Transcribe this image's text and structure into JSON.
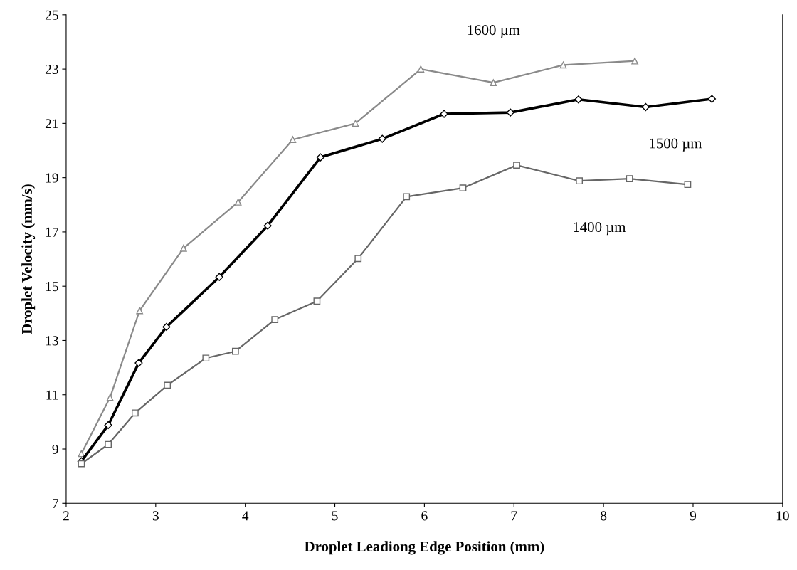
{
  "chart_data": {
    "type": "line",
    "xlabel": "Droplet Leadiong Edge Position (mm)",
    "ylabel": "Droplet Velocity (mm/s)",
    "xlim": [
      2,
      10
    ],
    "xticks": [
      2,
      3,
      4,
      5,
      6,
      7,
      8,
      9,
      10
    ],
    "ylim": [
      7,
      25
    ],
    "yticks": [
      7,
      9,
      11,
      13,
      15,
      17,
      19,
      21,
      23,
      25
    ],
    "grid": false,
    "legend": false,
    "series": [
      {
        "name": "1600 µm",
        "color": "#8a8a8a",
        "marker": "triangle",
        "x": [
          2.17,
          2.49,
          2.82,
          3.31,
          3.92,
          4.53,
          5.23,
          5.96,
          6.77,
          7.55,
          8.35
        ],
        "values": [
          8.83,
          10.9,
          14.1,
          16.4,
          18.1,
          20.4,
          21.0,
          23.0,
          22.5,
          23.15,
          23.3
        ]
      },
      {
        "name": "1500 µm",
        "color": "#000000",
        "marker": "diamond",
        "x": [
          2.17,
          2.47,
          2.81,
          3.12,
          3.71,
          4.25,
          4.84,
          5.53,
          6.22,
          6.96,
          7.72,
          8.47,
          9.21
        ],
        "values": [
          8.55,
          9.88,
          12.17,
          13.5,
          15.34,
          17.23,
          19.75,
          20.43,
          21.35,
          21.4,
          21.88,
          21.6,
          21.9
        ]
      },
      {
        "name": "1400 µm",
        "color": "#666666",
        "marker": "square",
        "x": [
          2.17,
          2.47,
          2.77,
          3.13,
          3.56,
          3.89,
          4.33,
          4.8,
          5.26,
          5.8,
          6.43,
          7.03,
          7.73,
          8.29,
          8.94
        ],
        "values": [
          8.46,
          9.17,
          10.33,
          11.35,
          12.35,
          12.6,
          13.77,
          14.45,
          16.02,
          18.3,
          18.62,
          19.46,
          18.88,
          18.96,
          18.75
        ]
      }
    ]
  }
}
